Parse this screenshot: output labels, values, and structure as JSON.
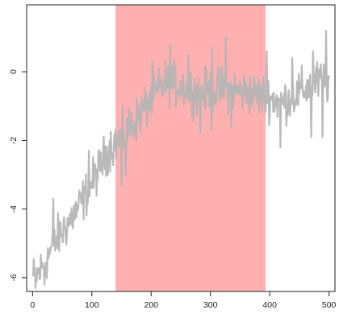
{
  "chart_data": {
    "type": "line",
    "title": "",
    "xlabel": "",
    "ylabel": "",
    "xlim": [
      -10,
      510
    ],
    "ylim": [
      -6.4,
      1.95
    ],
    "x_ticks": [
      0,
      100,
      200,
      300,
      400,
      500
    ],
    "x_tick_labels": [
      "0",
      "100",
      "200",
      "300",
      "400",
      "500"
    ],
    "y_ticks": [
      -6,
      -4,
      -2,
      0
    ],
    "y_tick_labels": [
      "-6",
      "-4",
      "-2",
      "0"
    ],
    "grid": false,
    "legend": "none",
    "highlight_region": {
      "x_start": 140,
      "x_end": 393,
      "color": "#ffb0b0"
    },
    "series": [
      {
        "color": "#b5b5b5",
        "n": 500,
        "trend_knots": [
          [
            1,
            -6.0
          ],
          [
            10,
            -5.9
          ],
          [
            40,
            -4.9
          ],
          [
            80,
            -3.9
          ],
          [
            110,
            -2.9
          ],
          [
            130,
            -2.2
          ],
          [
            145,
            -2.0
          ],
          [
            170,
            -1.5
          ],
          [
            200,
            -0.8
          ],
          [
            225,
            -0.3
          ],
          [
            250,
            -0.4
          ],
          [
            280,
            -0.6
          ],
          [
            320,
            -0.5
          ],
          [
            360,
            -0.6
          ],
          [
            393,
            -0.7
          ],
          [
            420,
            -0.9
          ],
          [
            450,
            -0.6
          ],
          [
            480,
            -0.3
          ],
          [
            500,
            -0.3
          ]
        ],
        "noise_amplitude": 0.42,
        "low_excursions": [
          [
            5,
            -6.3
          ],
          [
            20,
            -6.2
          ],
          [
            150,
            -3.3
          ],
          [
            157,
            -3.0
          ],
          [
            283,
            -1.8
          ],
          [
            302,
            -1.7
          ],
          [
            335,
            -1.6
          ],
          [
            418,
            -2.2
          ],
          [
            470,
            -1.9
          ],
          [
            489,
            -1.9
          ]
        ],
        "high_excursions": [
          [
            35,
            -3.7
          ],
          [
            95,
            -2.3
          ],
          [
            202,
            0.3
          ],
          [
            232,
            0.8
          ],
          [
            263,
            0.5
          ],
          [
            303,
            0.7
          ],
          [
            326,
            1.0
          ],
          [
            395,
            0.6
          ],
          [
            438,
            0.4
          ],
          [
            473,
            0.6
          ],
          [
            495,
            1.2
          ],
          [
            505,
            0.4
          ]
        ]
      }
    ]
  }
}
